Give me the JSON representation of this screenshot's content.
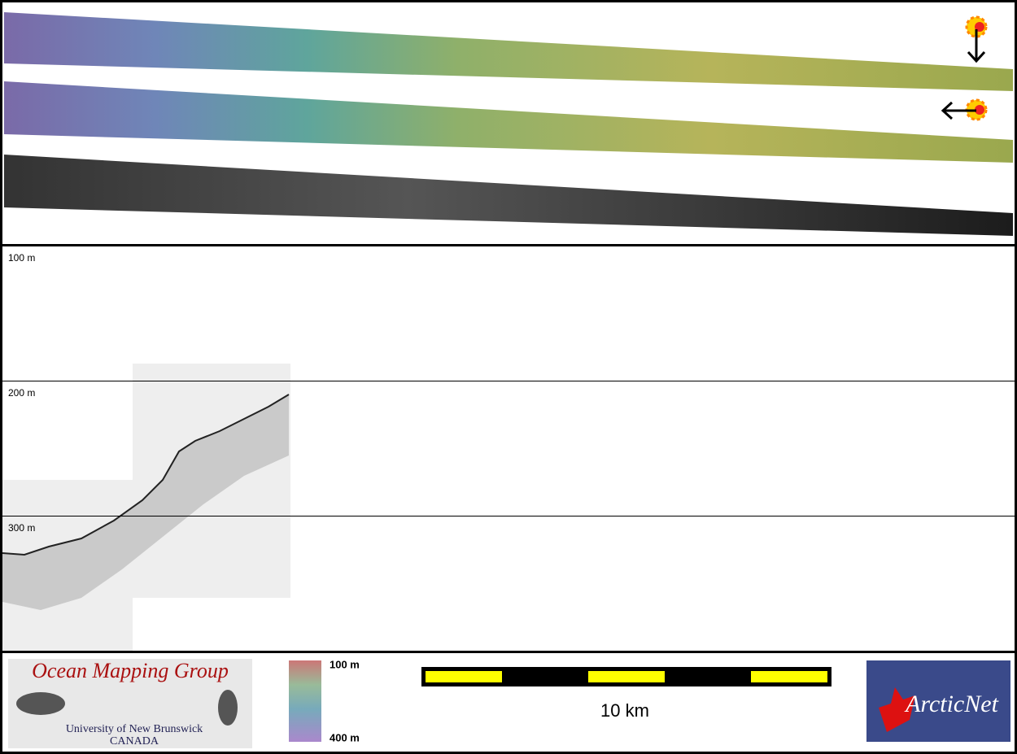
{
  "profile": {
    "depth_labels": [
      "100 m",
      "200 m",
      "300 m"
    ]
  },
  "logo_omg": {
    "title": "Ocean Mapping Group",
    "line1": "University of New Brunswick",
    "line2": "CANADA"
  },
  "colorbar": {
    "top_label": "100 m",
    "bottom_label": "400 m"
  },
  "scale_bar": {
    "label": "10 km"
  },
  "logo_arctic": {
    "title": "ArcticNet"
  }
}
